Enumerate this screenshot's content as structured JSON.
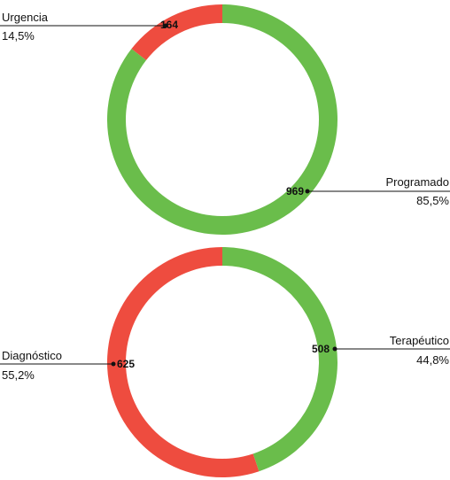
{
  "chart_data": [
    {
      "type": "pie",
      "categories": [
        "Urgencia",
        "Programado"
      ],
      "values": [
        164,
        969
      ],
      "percent_labels": [
        "14,5%",
        "85,5%"
      ],
      "colors": [
        "#ee4c3f",
        "#6abd4b"
      ]
    },
    {
      "type": "pie",
      "categories": [
        "Diagnóstico",
        "Terapéutico"
      ],
      "values": [
        625,
        508
      ],
      "percent_labels": [
        "55,2%",
        "44,8%"
      ],
      "colors": [
        "#ee4c3f",
        "#6abd4b"
      ]
    }
  ]
}
